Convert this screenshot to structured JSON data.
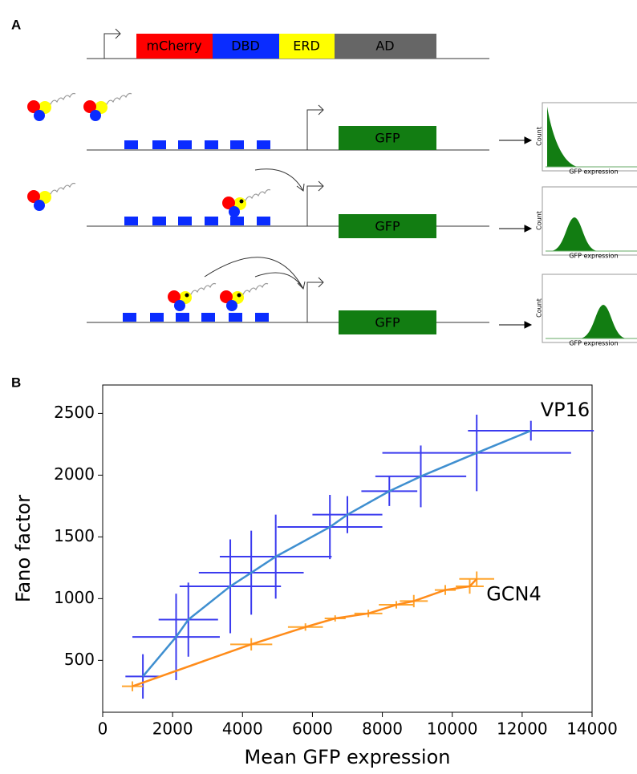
{
  "panel_a": {
    "label": "A",
    "construct": [
      "mCherry",
      "DBD",
      "ERD",
      "AD"
    ],
    "reporters": [
      {
        "gene": "GFP",
        "histogram": {
          "ylabel": "Count",
          "xlabel": "GFP expression"
        }
      },
      {
        "gene": "GFP",
        "histogram": {
          "ylabel": "Count",
          "xlabel": "GFP expression"
        }
      },
      {
        "gene": "GFP",
        "histogram": {
          "ylabel": "Count",
          "xlabel": "GFP expression"
        }
      }
    ]
  },
  "panel_b": {
    "label": "B"
  },
  "chart_data": {
    "type": "errorbar",
    "xlabel": "Mean GFP expression",
    "ylabel": "Fano factor",
    "xlim": [
      0,
      14000
    ],
    "ylim": [
      80,
      2730
    ],
    "xticks": [
      0,
      2000,
      4000,
      6000,
      8000,
      10000,
      12000,
      14000
    ],
    "yticks": [
      500,
      1000,
      1500,
      2000,
      2500
    ],
    "series": [
      {
        "name": "VP16",
        "color": "#3b3bef",
        "line_color": "#3f8fd0",
        "x": [
          1150,
          2100,
          2450,
          3650,
          4250,
          4950,
          6500,
          7000,
          8200,
          9100,
          10700,
          12250
        ],
        "values": [
          370,
          690,
          830,
          1100,
          1210,
          1340,
          1580,
          1680,
          1870,
          1990,
          2180,
          2360
        ],
        "xerr": [
          500,
          1250,
          850,
          1450,
          1500,
          1600,
          1500,
          1000,
          800,
          1300,
          2700,
          1800
        ],
        "yerr": [
          180,
          350,
          300,
          380,
          340,
          340,
          260,
          150,
          120,
          250,
          310,
          80
        ]
      },
      {
        "name": "GCN4",
        "color": "#ffa52e",
        "line_color": "#ff8c1a",
        "x": [
          850,
          4250,
          5800,
          6650,
          7600,
          8400,
          8900,
          9800,
          10500,
          10700
        ],
        "values": [
          290,
          630,
          770,
          840,
          880,
          950,
          980,
          1070,
          1100,
          1160
        ],
        "xerr": [
          300,
          600,
          500,
          300,
          400,
          500,
          400,
          300,
          400,
          500
        ],
        "yerr": [
          40,
          50,
          30,
          25,
          30,
          30,
          50,
          40,
          60,
          60
        ]
      }
    ]
  }
}
